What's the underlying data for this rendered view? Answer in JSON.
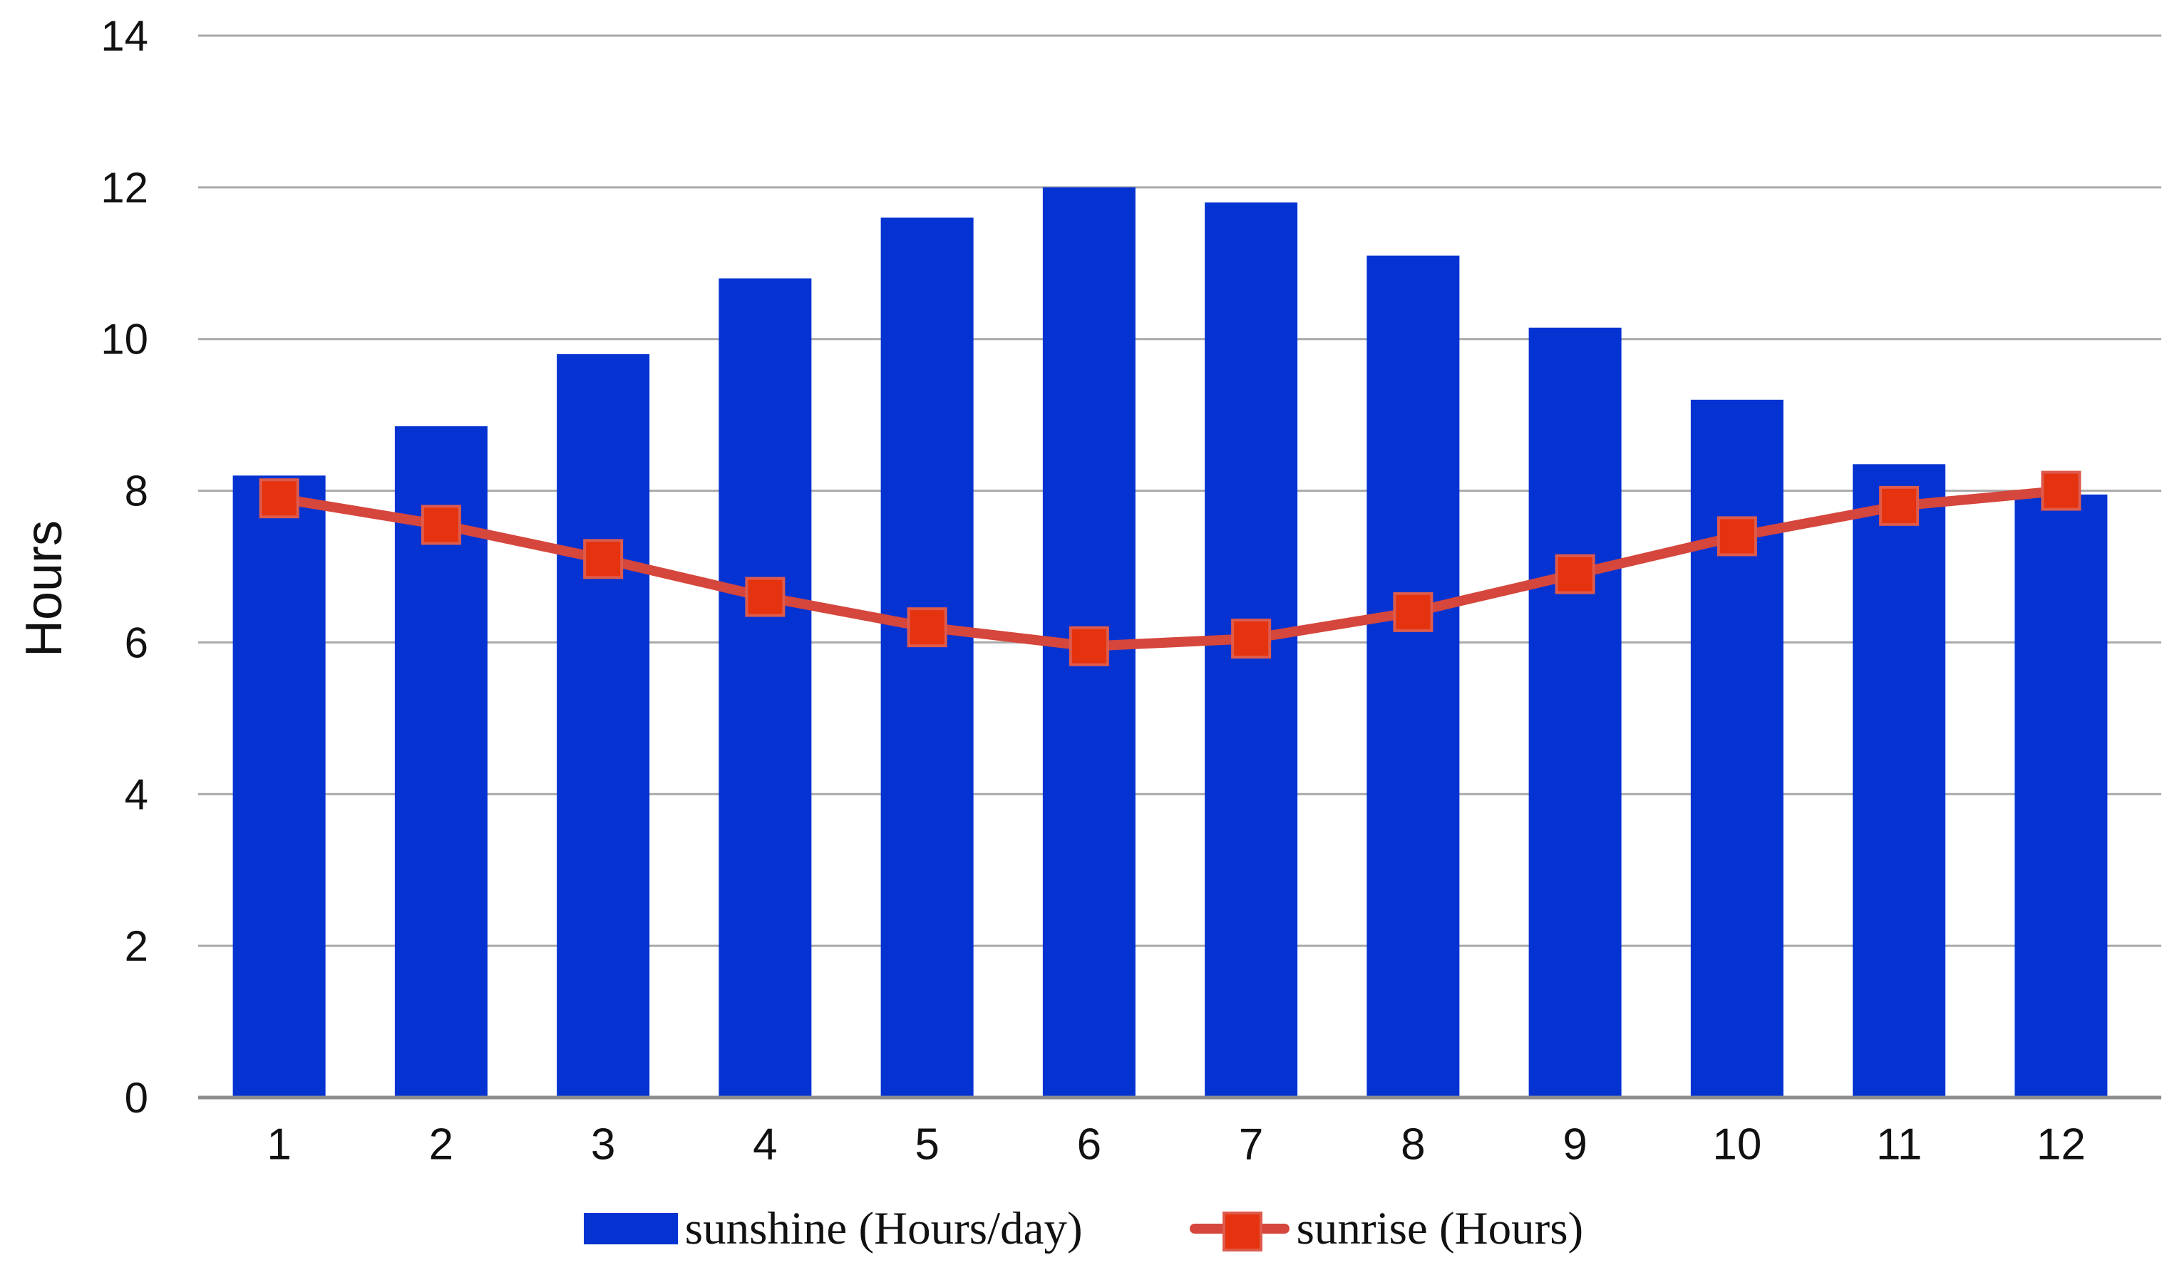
{
  "figure": {
    "y_axis_title": "Hours",
    "legend": {
      "sunshine_label": "sunshine (Hours/day)",
      "sunrise_label": "sunrise (Hours)"
    }
  },
  "colors": {
    "bar": "#0533d2",
    "line": "#d5463c",
    "marker_fill": "#e5330f",
    "marker_edge": "#de5a4b",
    "gridline": "#a9a9a9",
    "axis_line": "#8e8e8e",
    "text": "#111111"
  },
  "chart_data": {
    "type": "bar",
    "categories": [
      "1",
      "2",
      "3",
      "4",
      "5",
      "6",
      "7",
      "8",
      "9",
      "10",
      "11",
      "12"
    ],
    "series": [
      {
        "name": "sunshine (Hours/day)",
        "type": "bar",
        "values": [
          8.2,
          8.85,
          9.8,
          10.8,
          11.6,
          12.0,
          11.8,
          11.1,
          10.15,
          9.2,
          8.35,
          7.95
        ]
      },
      {
        "name": "sunrise (Hours)",
        "type": "line",
        "values": [
          7.9,
          7.55,
          7.1,
          6.6,
          6.2,
          5.95,
          6.05,
          6.4,
          6.9,
          7.4,
          7.8,
          8.0
        ]
      }
    ],
    "title": "",
    "xlabel": "",
    "ylabel": "Hours",
    "ylim": [
      0,
      14
    ],
    "yticks": [
      0,
      2,
      4,
      6,
      8,
      10,
      12,
      14
    ],
    "grid": true,
    "legend_position": "bottom"
  }
}
